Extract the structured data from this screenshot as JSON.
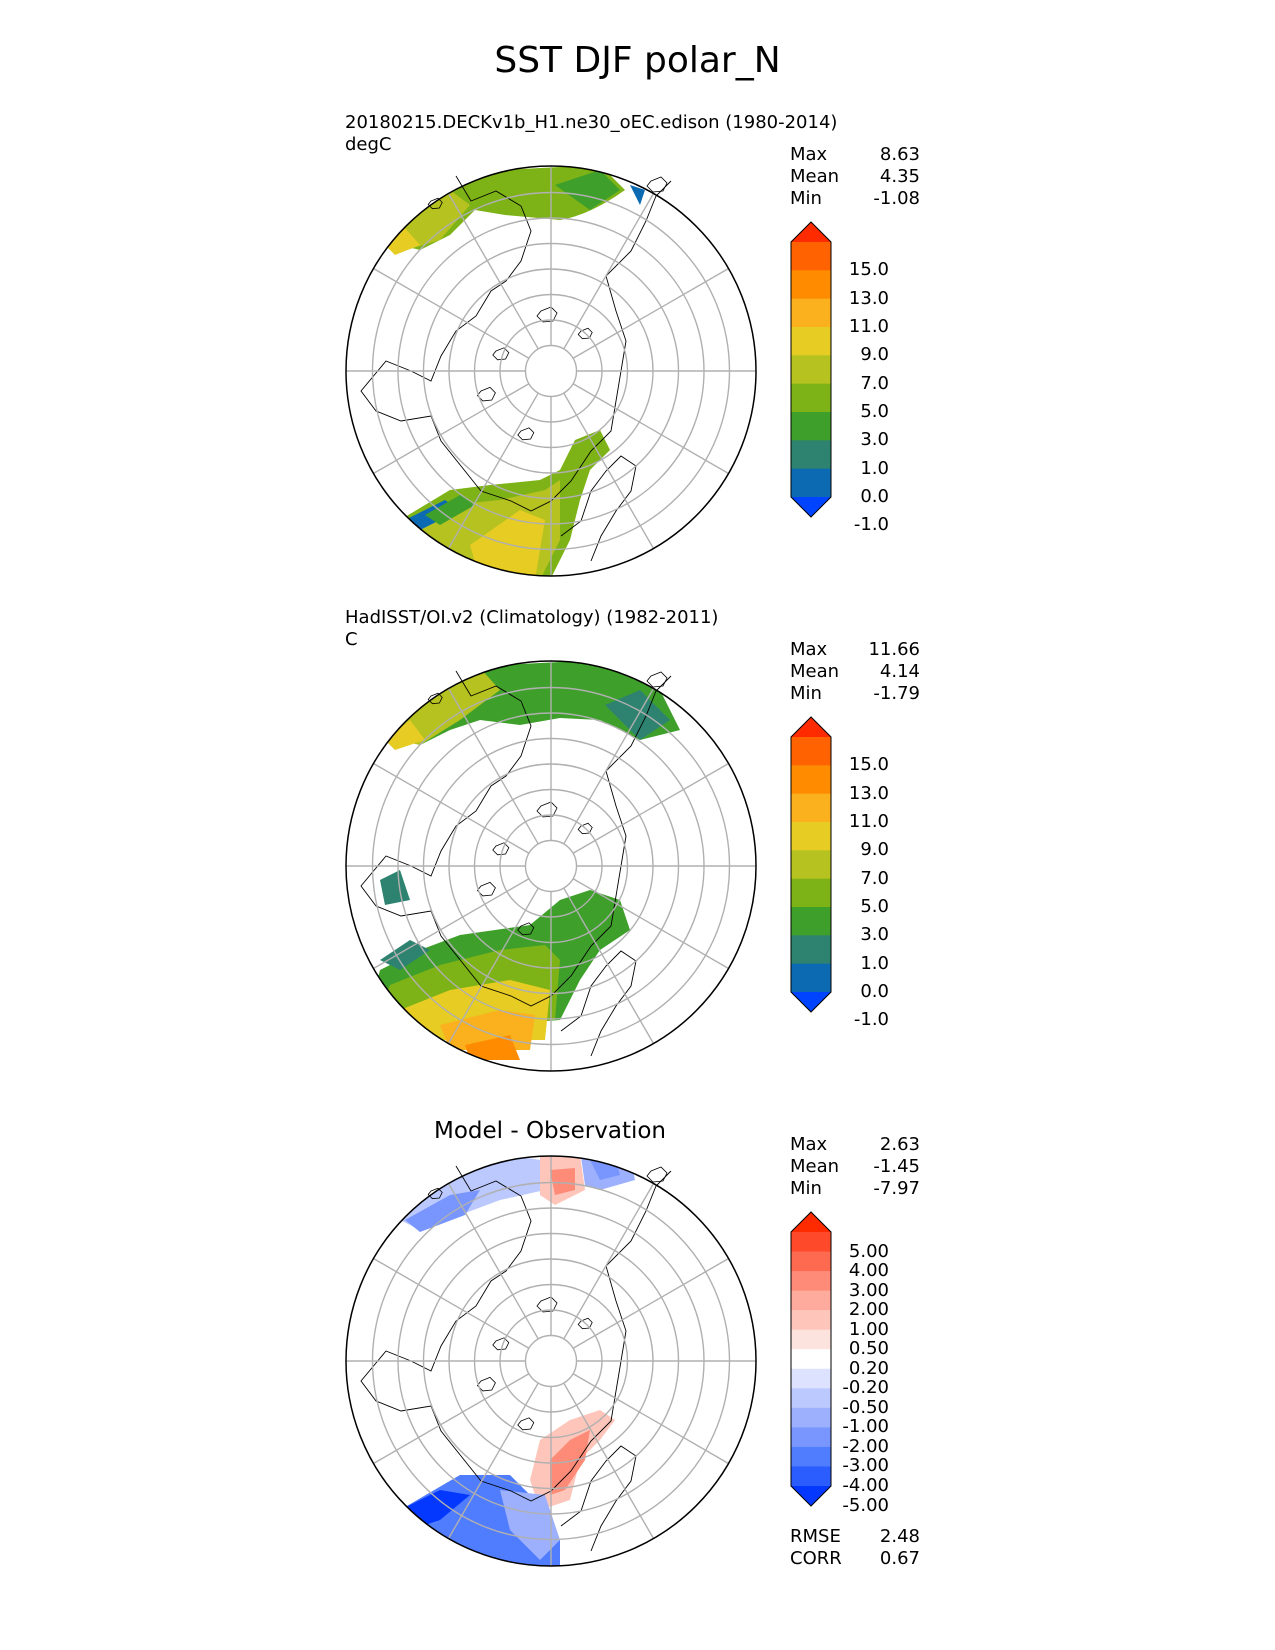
{
  "title": "SST DJF polar_N",
  "panels": [
    {
      "title_line1": "20180215.DECKv1b_H1.ne30_oEC.edison (1980-2014)",
      "title_line2": "degC",
      "stats": [
        {
          "label": "Max",
          "value": "8.63"
        },
        {
          "label": "Mean",
          "value": "4.35"
        },
        {
          "label": "Min",
          "value": "-1.08"
        }
      ],
      "colorbar": {
        "labels": [
          "15.0",
          "13.0",
          "11.0",
          "9.0",
          "7.0",
          "5.0",
          "3.0",
          "1.0",
          "0.0",
          "-1.0"
        ],
        "colors": [
          "#fe2a00",
          "#ff6200",
          "#ff8c00",
          "#fbb11e",
          "#e6cc23",
          "#b5c21f",
          "#7db316",
          "#3ea02a",
          "#2e8370",
          "#0b6ab1",
          "#0044ff"
        ]
      }
    },
    {
      "title_line1": "HadISST/OI.v2 (Climatology) (1982-2011)",
      "title_line2": "C",
      "stats": [
        {
          "label": "Max",
          "value": "11.66"
        },
        {
          "label": "Mean",
          "value": "4.14"
        },
        {
          "label": "Min",
          "value": "-1.79"
        }
      ],
      "colorbar": {
        "labels": [
          "15.0",
          "13.0",
          "11.0",
          "9.0",
          "7.0",
          "5.0",
          "3.0",
          "1.0",
          "0.0",
          "-1.0"
        ],
        "colors": [
          "#fe2a00",
          "#ff6200",
          "#ff8c00",
          "#fbb11e",
          "#e6cc23",
          "#b5c21f",
          "#7db316",
          "#3ea02a",
          "#2e8370",
          "#0b6ab1",
          "#0044ff"
        ]
      }
    },
    {
      "title_center": "Model - Observation",
      "stats": [
        {
          "label": "Max",
          "value": "2.63"
        },
        {
          "label": "Mean",
          "value": "-1.45"
        },
        {
          "label": "Min",
          "value": "-7.97"
        }
      ],
      "colorbar": {
        "labels": [
          "5.00",
          "4.00",
          "3.00",
          "2.00",
          "1.00",
          "0.50",
          "0.20",
          "-0.20",
          "-0.50",
          "-1.00",
          "-2.00",
          "-3.00",
          "-4.00",
          "-5.00"
        ],
        "colors": [
          "#fe2a00",
          "#fe4a2a",
          "#fe6a50",
          "#fe8a78",
          "#feaa9c",
          "#fec6bb",
          "#fde3de",
          "#ffffff",
          "#dde3fe",
          "#bbc9fe",
          "#9cb0fe",
          "#7896fe",
          "#507cfe",
          "#2a5cfe",
          "#0438fe"
        ]
      },
      "metrics": [
        {
          "label": "RMSE",
          "value": "2.48"
        },
        {
          "label": "CORR",
          "value": "0.67"
        }
      ]
    }
  ]
}
